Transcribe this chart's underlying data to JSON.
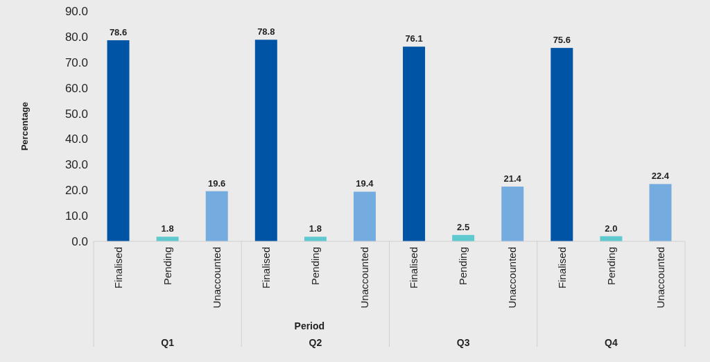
{
  "chart_data": {
    "type": "bar",
    "xlabel": "Period",
    "ylabel": "Percentage",
    "categories": [
      "Finalised",
      "Pending",
      "Unaccounted",
      "Finalised",
      "Pending",
      "Unaccounted",
      "Finalised",
      "Pending",
      "Unaccounted",
      "Finalised",
      "Pending",
      "Unaccounted"
    ],
    "values": [
      78.6,
      1.8,
      19.6,
      78.8,
      1.8,
      19.4,
      76.1,
      2.5,
      21.4,
      75.6,
      2.0,
      22.4
    ],
    "value_labels": [
      "78.6",
      "1.8",
      "19.6",
      "78.8",
      "1.8",
      "19.4",
      "76.1",
      "2.5",
      "21.4",
      "75.6",
      "2.0",
      "22.4"
    ],
    "colors": [
      "#0054a6",
      "#5fc9cf",
      "#75acdf",
      "#0054a6",
      "#5fc9cf",
      "#75acdf",
      "#0054a6",
      "#5fc9cf",
      "#75acdf",
      "#0054a6",
      "#5fc9cf",
      "#75acdf"
    ],
    "annotations": [
      "Q1",
      "Q2",
      "Q3",
      "Q4"
    ],
    "ylim": [
      0,
      90
    ],
    "yticks": [
      {
        "value": 0,
        "label": "0.0"
      },
      {
        "value": 10,
        "label": "10.0"
      },
      {
        "value": 20,
        "label": "20.0"
      },
      {
        "value": 30,
        "label": "30.0"
      },
      {
        "value": 40,
        "label": "40.0"
      },
      {
        "value": 50,
        "label": "50.0"
      },
      {
        "value": 60,
        "label": "60.0"
      },
      {
        "value": 70,
        "label": "70.0"
      },
      {
        "value": 80,
        "label": "80.0"
      },
      {
        "value": 90,
        "label": "90.0"
      }
    ]
  }
}
